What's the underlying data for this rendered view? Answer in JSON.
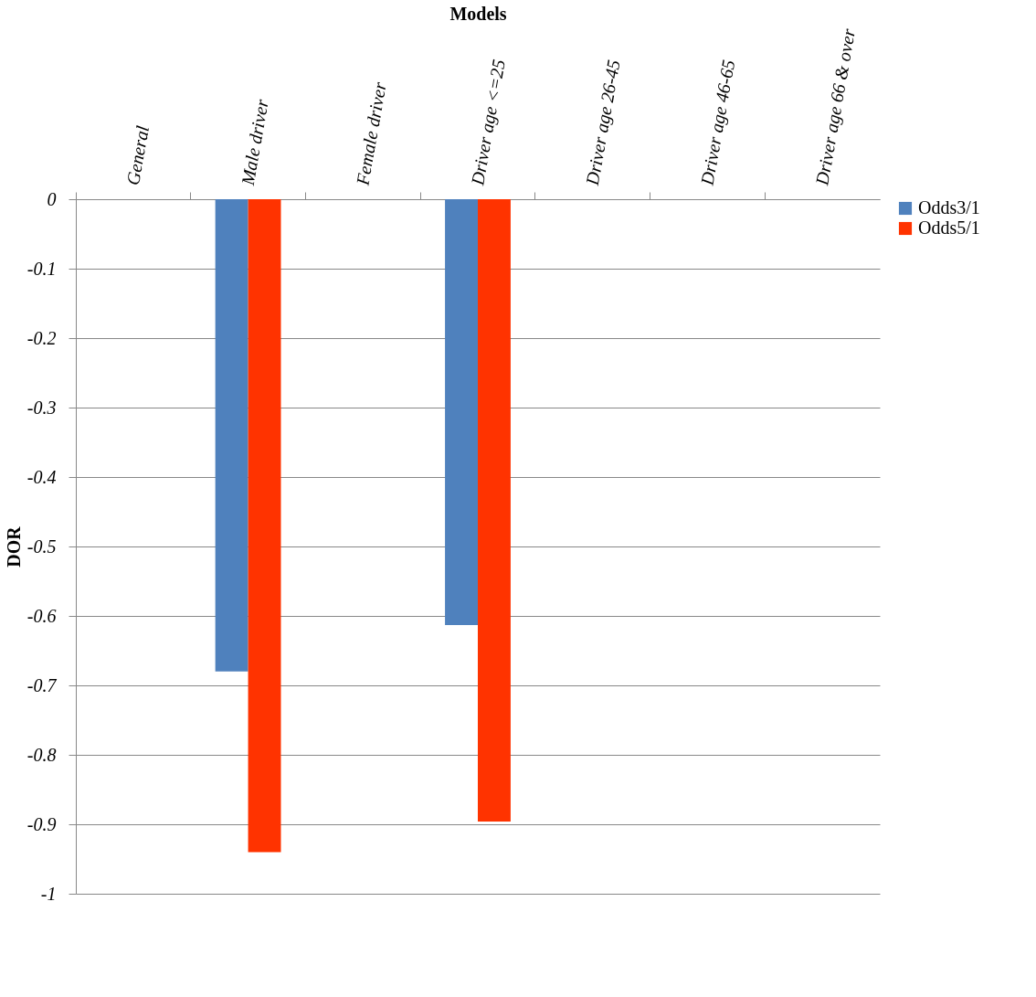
{
  "chart_data": {
    "type": "bar",
    "xlabel": "Models",
    "ylabel": "DOR",
    "categories": [
      "General",
      "Male driver",
      "Female driver",
      "Driver age <=25",
      "Driver age 26-45",
      "Driver age 46-65",
      "Driver age 66 & over"
    ],
    "series": [
      {
        "name": "Odds3/1",
        "color": "#4f81bd",
        "values": [
          null,
          -0.68,
          null,
          -0.613,
          null,
          null,
          null
        ]
      },
      {
        "name": "Odds5/1",
        "color": "#ff3300",
        "values": [
          null,
          -0.94,
          null,
          -0.896,
          null,
          null,
          null
        ]
      }
    ],
    "ylim": [
      -1,
      0
    ],
    "yticks": [
      0,
      -0.1,
      -0.2,
      -0.3,
      -0.4,
      -0.5,
      -0.6,
      -0.7,
      -0.8,
      -0.9,
      -1
    ],
    "grid": "y",
    "legend": "right"
  }
}
